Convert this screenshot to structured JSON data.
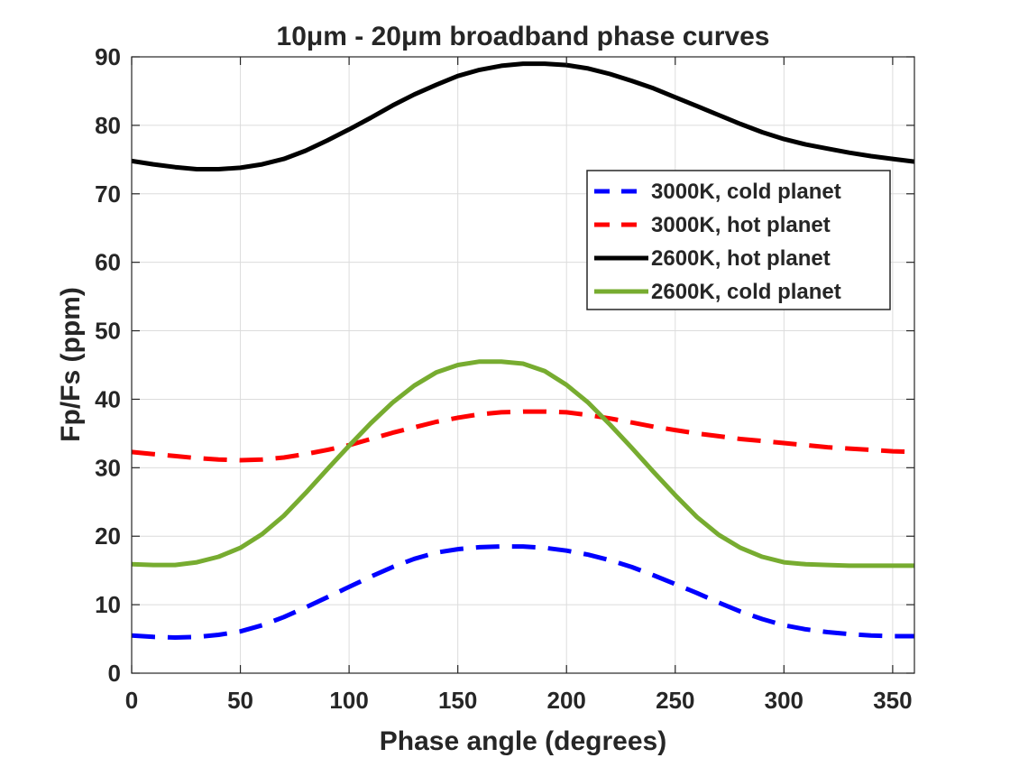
{
  "chart_data": {
    "type": "line",
    "title": "10μm - 20μm broadband phase curves",
    "xlabel": "Phase angle (degrees)",
    "ylabel": "Fp/Fs (ppm)",
    "xlim": [
      0,
      360
    ],
    "ylim": [
      0,
      90
    ],
    "xticks": [
      0,
      50,
      100,
      150,
      200,
      250,
      300,
      350
    ],
    "yticks": [
      0,
      10,
      20,
      30,
      40,
      50,
      60,
      70,
      80,
      90
    ],
    "grid": true,
    "legend_position": "top-right",
    "x": [
      0,
      10,
      20,
      30,
      40,
      50,
      60,
      70,
      80,
      90,
      100,
      110,
      120,
      130,
      140,
      150,
      160,
      170,
      180,
      190,
      200,
      210,
      220,
      230,
      240,
      250,
      260,
      270,
      280,
      290,
      300,
      310,
      320,
      330,
      340,
      350,
      360
    ],
    "series": [
      {
        "name": "3000K, cold planet",
        "color": "#0000ff",
        "style": "dashed",
        "values": [
          5.5,
          5.3,
          5.2,
          5.3,
          5.6,
          6.1,
          7.0,
          8.2,
          9.6,
          11.1,
          12.6,
          14.1,
          15.5,
          16.7,
          17.6,
          18.1,
          18.4,
          18.5,
          18.5,
          18.3,
          17.9,
          17.3,
          16.5,
          15.5,
          14.3,
          13.0,
          11.7,
          10.3,
          9.0,
          7.9,
          7.0,
          6.4,
          6.0,
          5.7,
          5.5,
          5.4,
          5.4
        ]
      },
      {
        "name": "3000K, hot planet",
        "color": "#ff0000",
        "style": "dashed",
        "values": [
          32.3,
          32.0,
          31.7,
          31.4,
          31.2,
          31.1,
          31.2,
          31.5,
          32.0,
          32.6,
          33.3,
          34.2,
          35.1,
          35.9,
          36.7,
          37.3,
          37.8,
          38.1,
          38.2,
          38.2,
          38.1,
          37.7,
          37.2,
          36.6,
          36.0,
          35.5,
          35.0,
          34.6,
          34.2,
          33.9,
          33.6,
          33.3,
          33.0,
          32.8,
          32.6,
          32.4,
          32.3
        ]
      },
      {
        "name": "2600K, hot planet",
        "color": "#000000",
        "style": "solid",
        "values": [
          74.8,
          74.3,
          73.9,
          73.6,
          73.6,
          73.8,
          74.3,
          75.1,
          76.3,
          77.8,
          79.4,
          81.1,
          82.9,
          84.5,
          85.9,
          87.2,
          88.1,
          88.7,
          89.0,
          89.0,
          88.8,
          88.3,
          87.5,
          86.5,
          85.4,
          84.1,
          82.8,
          81.5,
          80.2,
          79.0,
          78.0,
          77.2,
          76.6,
          76.0,
          75.5,
          75.1,
          74.7
        ]
      },
      {
        "name": "2600K, cold planet",
        "color": "#77ac30",
        "style": "solid",
        "values": [
          15.9,
          15.8,
          15.8,
          16.2,
          17.0,
          18.3,
          20.3,
          23.0,
          26.3,
          29.8,
          33.2,
          36.5,
          39.5,
          42.0,
          43.9,
          45.0,
          45.5,
          45.5,
          45.2,
          44.1,
          42.1,
          39.5,
          36.3,
          32.9,
          29.4,
          26.0,
          22.8,
          20.2,
          18.3,
          17.0,
          16.2,
          15.9,
          15.8,
          15.7,
          15.7,
          15.7,
          15.7
        ]
      }
    ]
  }
}
